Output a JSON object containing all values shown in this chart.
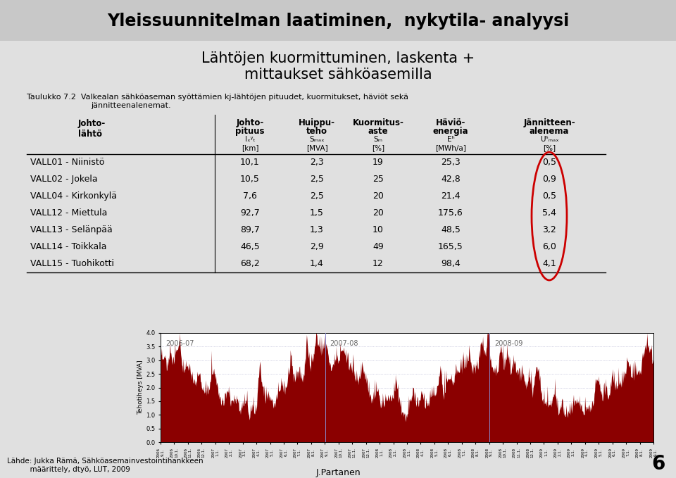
{
  "title": "Yleissuunnitelman laatiminen,  nykytila- analyysi",
  "subtitle_line1": "Lähtöjen kuormittuminen, laskenta +",
  "subtitle_line2": "mittaukset sähköasemilla",
  "caption": "Taulukko 7.2  Valkealan sähköaseman syöttämien kj-lähtöjen pituudet, kuormitukset, häviöt sekä jännitteenalenemat.",
  "rows": [
    [
      "VALL01 - Niinistö",
      "10,1",
      "2,3",
      "19",
      "25,3",
      "0,5"
    ],
    [
      "VALL02 - Jokela",
      "10,5",
      "2,5",
      "25",
      "42,8",
      "0,9"
    ],
    [
      "VALL04 - Kirkonkylä",
      "7,6",
      "2,5",
      "20",
      "21,4",
      "0,5"
    ],
    [
      "VALL12 - Miettula",
      "92,7",
      "1,5",
      "20",
      "175,6",
      "5,4"
    ],
    [
      "VALL13 - Selänpää",
      "89,7",
      "1,3",
      "10",
      "48,5",
      "3,2"
    ],
    [
      "VALL14 - Toikkala",
      "46,5",
      "2,9",
      "49",
      "165,5",
      "6,0"
    ],
    [
      "VALL15 - Tuohikotti",
      "68,2",
      "1,4",
      "12",
      "98,4",
      "4,1"
    ]
  ],
  "footer_left": "Lähde: Jukka Rämä, Sähköasemainvestointihankkeen\n          määrittely, dtyö, LUT, 2009",
  "footer_right": "J.Partanen",
  "page_number": "6",
  "bg_color": "#e0e0e0",
  "title_bg": "#c8c8c8",
  "circle_color": "#cc0000",
  "chart_bg": "#ffffff",
  "chart_line_color": "#8b0000",
  "chart_grid_color": "#aaaacc",
  "year_labels": [
    "2006-07",
    "2007-08",
    "2008-09"
  ],
  "yticks": [
    0.0,
    0.5,
    1.0,
    1.5,
    2.0,
    2.5,
    3.0,
    3.5,
    4.0
  ],
  "ylabel_chart": "Tehotiheys [MVA]"
}
